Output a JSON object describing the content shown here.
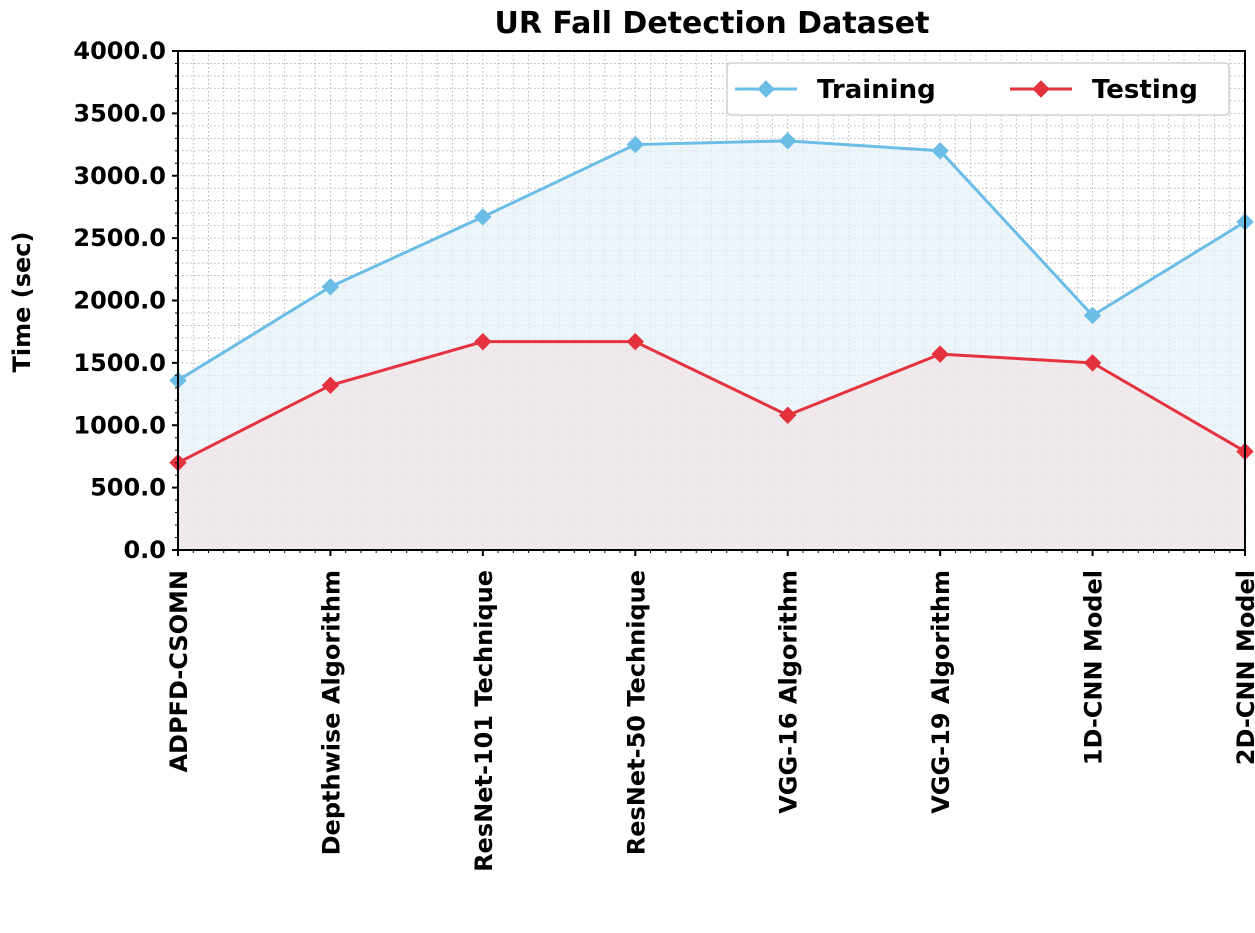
{
  "chart_data": {
    "type": "line",
    "title": "UR Fall Detection Dataset",
    "xlabel": "",
    "ylabel": "Time (sec)",
    "categories": [
      "ADPFD-CSOMN",
      "Depthwise Algorithm",
      "ResNet-101 Technique",
      "ResNet-50 Technique",
      "VGG-16 Algorithm",
      "VGG-19 Algorithm",
      "1D-CNN Model",
      "2D-CNN Model"
    ],
    "series": [
      {
        "name": "Training",
        "color": "#6bbde6",
        "fill": "#e6f2f8",
        "values": [
          1360,
          2110,
          2670,
          3250,
          3280,
          3200,
          1880,
          2630
        ]
      },
      {
        "name": "Testing",
        "color": "#e5323f",
        "fill": "#f2e4e6",
        "values": [
          700,
          1320,
          1670,
          1670,
          1080,
          1570,
          1500,
          790
        ]
      }
    ],
    "ylim": [
      0,
      4000
    ],
    "yticks": [
      "0.0",
      "500.0",
      "1000.0",
      "1500.0",
      "2000.0",
      "2500.0",
      "3000.0",
      "3500.0",
      "4000.0"
    ],
    "grid": true,
    "legend_position": "top-right"
  }
}
